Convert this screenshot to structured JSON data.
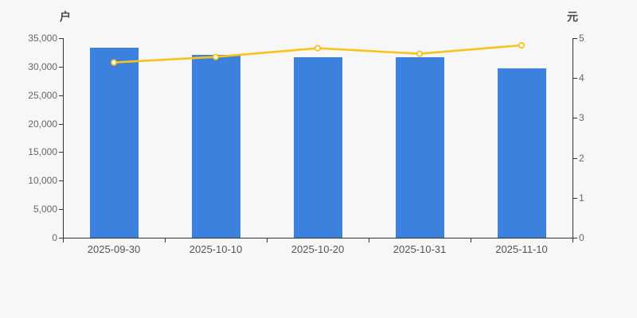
{
  "chart": {
    "background_color": "#f7f7f7",
    "axis_color": "#333333",
    "y_tick_label_color": "#666666",
    "x_tick_label_color": "#555555",
    "axis_name_color": "#4a4a4a"
  },
  "chart_data": {
    "type": "bar",
    "title": "",
    "categories": [
      "2025-09-30",
      "2025-10-10",
      "2025-10-20",
      "2025-10-31",
      "2025-11-10"
    ],
    "series": [
      {
        "name": "households-bar",
        "type": "bar",
        "axis": "left",
        "color": "#3b81dd",
        "values": [
          33300,
          32100,
          31700,
          31600,
          29700
        ]
      },
      {
        "name": "price-line",
        "type": "line",
        "axis": "right",
        "color": "#fbc318",
        "marker_fill": "#ffffff",
        "values": [
          4.39,
          4.53,
          4.75,
          4.61,
          4.82
        ]
      }
    ],
    "left_axis": {
      "name": "户",
      "min": 0,
      "max": 35000,
      "step": 5000,
      "tick_labels": [
        "0",
        "5,000",
        "10,000",
        "15,000",
        "20,000",
        "25,000",
        "30,000",
        "35,000"
      ]
    },
    "right_axis": {
      "name": "元",
      "min": 0,
      "max": 5,
      "step": 1,
      "tick_labels": [
        "0",
        "1",
        "2",
        "3",
        "4",
        "5"
      ]
    },
    "grid": false,
    "legend": "none"
  }
}
